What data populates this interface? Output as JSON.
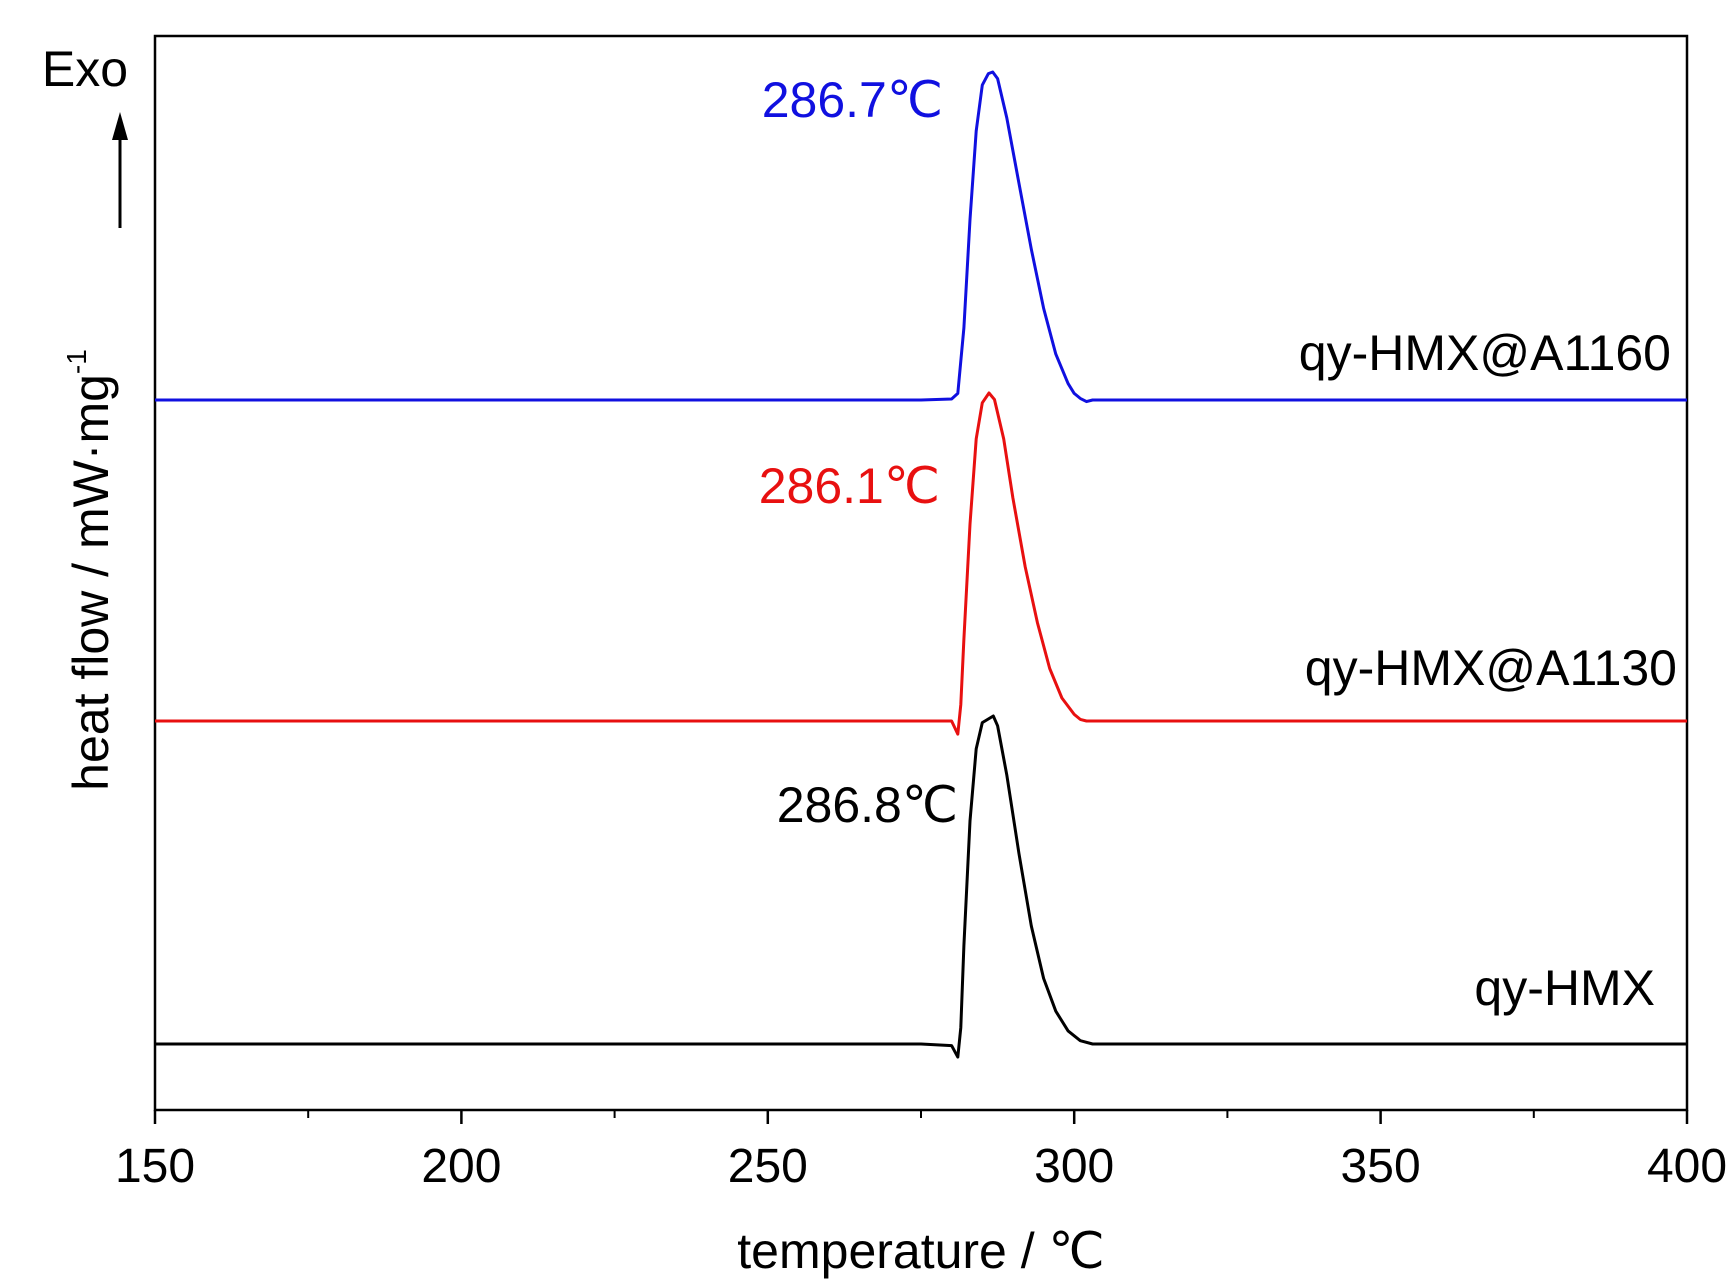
{
  "chart_data": {
    "type": "line",
    "title": "",
    "xlabel": "temperature / ℃",
    "ylabel": "heat flow / mW·mg",
    "ylabel_superscript": "-1",
    "y_direction_label": "Exo",
    "xlim": [
      150,
      400
    ],
    "x_ticks": [
      150,
      200,
      250,
      300,
      350,
      400
    ],
    "x_tick_labels": [
      "150",
      "200",
      "250",
      "300",
      "350",
      "400"
    ],
    "y_ticks_shown": false,
    "grid": false,
    "series": [
      {
        "name": "qy-HMX@A1160",
        "color": "#1010e0",
        "peak_label": "286.7℃",
        "x": [
          150,
          200,
          250,
          275,
          280,
          281,
          282,
          283,
          284,
          285,
          286,
          286.7,
          287.5,
          289,
          291,
          293,
          295,
          297,
          299,
          300,
          301,
          302,
          303,
          310,
          350,
          400
        ],
        "y": [
          0.0,
          0.0,
          0.0,
          0.0,
          0.003,
          0.02,
          0.22,
          0.55,
          0.82,
          0.96,
          0.995,
          1.0,
          0.98,
          0.86,
          0.66,
          0.46,
          0.28,
          0.14,
          0.05,
          0.02,
          0.005,
          -0.005,
          0.0,
          0.0,
          0.0,
          0.0
        ],
        "offset": 2.0
      },
      {
        "name": "qy-HMX@A1130",
        "color": "#e81010",
        "peak_label": "286.1℃",
        "x": [
          150,
          200,
          250,
          275,
          280,
          281,
          281.5,
          282,
          283,
          284,
          285,
          286.1,
          287,
          288.5,
          290,
          292,
          294,
          296,
          298,
          300,
          301,
          302,
          310,
          350,
          400
        ],
        "y": [
          0.0,
          0.0,
          0.0,
          0.0,
          0.0,
          -0.04,
          0.05,
          0.25,
          0.6,
          0.86,
          0.97,
          1.0,
          0.98,
          0.86,
          0.68,
          0.47,
          0.3,
          0.16,
          0.07,
          0.02,
          0.005,
          0.0,
          0.0,
          0.0,
          0.0
        ],
        "offset": 1.0
      },
      {
        "name": "qy-HMX",
        "color": "#000000",
        "peak_label": "286.8℃",
        "x": [
          150,
          200,
          250,
          275,
          280,
          281,
          281.5,
          282,
          283,
          284,
          285,
          286.8,
          287.5,
          289,
          291,
          293,
          295,
          297,
          299,
          301,
          303,
          305,
          350,
          400
        ],
        "y": [
          0.0,
          0.0,
          0.0,
          0.0,
          -0.005,
          -0.04,
          0.05,
          0.3,
          0.68,
          0.9,
          0.98,
          1.0,
          0.97,
          0.82,
          0.58,
          0.36,
          0.2,
          0.1,
          0.04,
          0.01,
          0.0,
          0.0,
          0.0,
          0.0
        ],
        "offset": 0.0
      }
    ]
  }
}
